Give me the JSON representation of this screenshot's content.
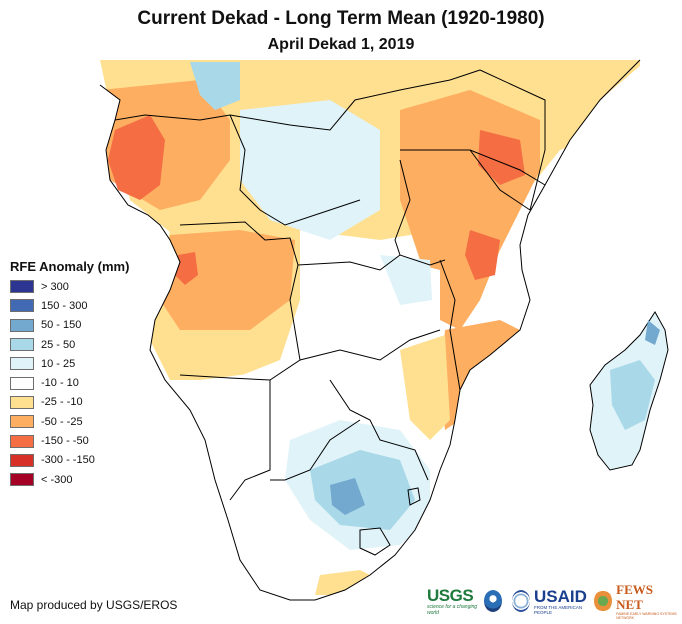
{
  "title": "Current Dekad - Long Term Mean (1920-1980)",
  "subtitle": "April Dekad 1, 2019",
  "legend": {
    "title": "RFE Anomaly (mm)",
    "items": [
      {
        "label": "> 300",
        "color": "#2c3592"
      },
      {
        "label": "150 - 300",
        "color": "#4169b4"
      },
      {
        "label": "50 - 150",
        "color": "#74a9cf"
      },
      {
        "label": "25 - 50",
        "color": "#a9d8e8"
      },
      {
        "label": "10 - 25",
        "color": "#e0f3f8"
      },
      {
        "label": "-10 - 10",
        "color": "#ffffff"
      },
      {
        "label": "-25 - -10",
        "color": "#fee090"
      },
      {
        "label": "-50 - -25",
        "color": "#fdae61"
      },
      {
        "label": "-150 - -50",
        "color": "#f46d43"
      },
      {
        "label": "-300 - -150",
        "color": "#d73027"
      },
      {
        "label": "< -300",
        "color": "#a50026"
      }
    ]
  },
  "credit": "Map produced by USGS/EROS",
  "logos": {
    "usgs": {
      "name": "USGS",
      "tagline": "science for a changing world"
    },
    "noaa": {
      "name": "NOAA"
    },
    "usaid_seal": {
      "name": "USAID seal"
    },
    "usaid": {
      "name": "USAID",
      "tagline": "FROM THE AMERICAN PEOPLE"
    },
    "fews": {
      "name": "FEWS NET",
      "tagline": "FAMINE EARLY WARNING SYSTEMS NETWORK"
    }
  }
}
